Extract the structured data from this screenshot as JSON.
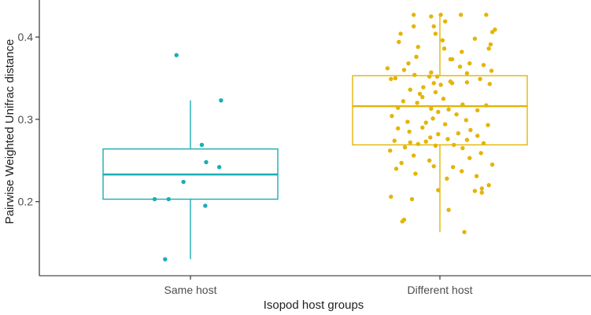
{
  "chart_data": {
    "type": "box",
    "title": "",
    "xlabel": "Isopod host groups",
    "ylabel": "Pairwise Weighted Unifrac distance",
    "ylim": [
      0.11,
      0.445
    ],
    "yticks": [
      0.2,
      0.3,
      0.4
    ],
    "ytick_labels": [
      "0.2",
      "0.3",
      "0.4"
    ],
    "grid": false,
    "legend": "none",
    "categories": [
      "Same host",
      "Different host"
    ],
    "series": [
      {
        "name": "Same host",
        "color": "#1aadb3",
        "box": {
          "whisker_low": 0.13,
          "q1": 0.203,
          "median": 0.233,
          "q3": 0.264,
          "whisker_high": 0.323
        },
        "points": [
          {
            "jitter": -0.16,
            "y": 0.378
          },
          {
            "jitter": 0.35,
            "y": 0.323
          },
          {
            "jitter": 0.13,
            "y": 0.269
          },
          {
            "jitter": 0.18,
            "y": 0.248
          },
          {
            "jitter": 0.33,
            "y": 0.242
          },
          {
            "jitter": -0.08,
            "y": 0.224
          },
          {
            "jitter": -0.41,
            "y": 0.203
          },
          {
            "jitter": -0.25,
            "y": 0.203
          },
          {
            "jitter": 0.17,
            "y": 0.195
          },
          {
            "jitter": -0.29,
            "y": 0.13
          }
        ]
      },
      {
        "name": "Different host",
        "color": "#e3b505",
        "box": {
          "whisker_low": 0.163,
          "q1": 0.269,
          "median": 0.316,
          "q3": 0.353,
          "whisker_high": 0.427
        },
        "points": [
          {
            "jitter": -0.3,
            "y": 0.427
          },
          {
            "jitter": -0.1,
            "y": 0.425
          },
          {
            "jitter": 0.01,
            "y": 0.427
          },
          {
            "jitter": 0.24,
            "y": 0.427
          },
          {
            "jitter": 0.53,
            "y": 0.427
          },
          {
            "jitter": 0.06,
            "y": 0.419
          },
          {
            "jitter": -0.3,
            "y": 0.413
          },
          {
            "jitter": -0.07,
            "y": 0.413
          },
          {
            "jitter": 0.63,
            "y": 0.409
          },
          {
            "jitter": 0.6,
            "y": 0.406
          },
          {
            "jitter": -0.45,
            "y": 0.404
          },
          {
            "jitter": -0.05,
            "y": 0.404
          },
          {
            "jitter": 0.4,
            "y": 0.398
          },
          {
            "jitter": 0.03,
            "y": 0.396
          },
          {
            "jitter": -0.47,
            "y": 0.394
          },
          {
            "jitter": 0.58,
            "y": 0.391
          },
          {
            "jitter": -0.25,
            "y": 0.388
          },
          {
            "jitter": 0.05,
            "y": 0.386
          },
          {
            "jitter": 0.56,
            "y": 0.386
          },
          {
            "jitter": 0.25,
            "y": 0.382
          },
          {
            "jitter": -0.27,
            "y": 0.376
          },
          {
            "jitter": 0.12,
            "y": 0.373
          },
          {
            "jitter": 0.14,
            "y": 0.373
          },
          {
            "jitter": -0.36,
            "y": 0.368
          },
          {
            "jitter": 0.34,
            "y": 0.368
          },
          {
            "jitter": 0.5,
            "y": 0.366
          },
          {
            "jitter": 0.23,
            "y": 0.364
          },
          {
            "jitter": -0.6,
            "y": 0.362
          },
          {
            "jitter": -0.41,
            "y": 0.36
          },
          {
            "jitter": 0.59,
            "y": 0.359
          },
          {
            "jitter": -0.1,
            "y": 0.357
          },
          {
            "jitter": 0.31,
            "y": 0.356
          },
          {
            "jitter": -0.29,
            "y": 0.354
          },
          {
            "jitter": -0.12,
            "y": 0.352
          },
          {
            "jitter": -0.03,
            "y": 0.352
          },
          {
            "jitter": -0.51,
            "y": 0.35
          },
          {
            "jitter": -0.56,
            "y": 0.349
          },
          {
            "jitter": 0.46,
            "y": 0.349
          },
          {
            "jitter": 0.12,
            "y": 0.346
          },
          {
            "jitter": 0.31,
            "y": 0.345
          },
          {
            "jitter": -0.07,
            "y": 0.344
          },
          {
            "jitter": 0.14,
            "y": 0.344
          },
          {
            "jitter": 0.57,
            "y": 0.343
          },
          {
            "jitter": 0.01,
            "y": 0.342
          },
          {
            "jitter": -0.19,
            "y": 0.339
          },
          {
            "jitter": -0.34,
            "y": 0.336
          },
          {
            "jitter": -0.05,
            "y": 0.333
          },
          {
            "jitter": -0.23,
            "y": 0.331
          },
          {
            "jitter": -0.2,
            "y": 0.327
          },
          {
            "jitter": 0.04,
            "y": 0.325
          },
          {
            "jitter": -0.42,
            "y": 0.322
          },
          {
            "jitter": -0.26,
            "y": 0.32
          },
          {
            "jitter": 0.26,
            "y": 0.318
          },
          {
            "jitter": 0.53,
            "y": 0.317
          },
          {
            "jitter": -0.48,
            "y": 0.314
          },
          {
            "jitter": -0.1,
            "y": 0.313
          },
          {
            "jitter": 0.1,
            "y": 0.312
          },
          {
            "jitter": 0.43,
            "y": 0.311
          },
          {
            "jitter": -0.02,
            "y": 0.309
          },
          {
            "jitter": 0.19,
            "y": 0.306
          },
          {
            "jitter": -0.55,
            "y": 0.304
          },
          {
            "jitter": -0.08,
            "y": 0.301
          },
          {
            "jitter": 0.3,
            "y": 0.299
          },
          {
            "jitter": -0.37,
            "y": 0.297
          },
          {
            "jitter": -0.16,
            "y": 0.296
          },
          {
            "jitter": 0.06,
            "y": 0.294
          },
          {
            "jitter": 0.55,
            "y": 0.293
          },
          {
            "jitter": -0.2,
            "y": 0.29
          },
          {
            "jitter": -0.48,
            "y": 0.289
          },
          {
            "jitter": 0.35,
            "y": 0.287
          },
          {
            "jitter": -0.35,
            "y": 0.285
          },
          {
            "jitter": 0.21,
            "y": 0.283
          },
          {
            "jitter": -0.02,
            "y": 0.282
          },
          {
            "jitter": 0.43,
            "y": 0.28
          },
          {
            "jitter": -0.11,
            "y": 0.278
          },
          {
            "jitter": 0.09,
            "y": 0.276
          },
          {
            "jitter": 0.31,
            "y": 0.275
          },
          {
            "jitter": -0.52,
            "y": 0.274
          },
          {
            "jitter": -0.16,
            "y": 0.273
          },
          {
            "jitter": -0.34,
            "y": 0.272
          },
          {
            "jitter": 0.5,
            "y": 0.271
          },
          {
            "jitter": -0.25,
            "y": 0.27
          },
          {
            "jitter": 0.16,
            "y": 0.269
          },
          {
            "jitter": -0.05,
            "y": 0.268
          },
          {
            "jitter": -0.4,
            "y": 0.266
          },
          {
            "jitter": 0.26,
            "y": 0.265
          },
          {
            "jitter": -0.57,
            "y": 0.262
          },
          {
            "jitter": 0.47,
            "y": 0.259
          },
          {
            "jitter": -0.3,
            "y": 0.256
          },
          {
            "jitter": 0.34,
            "y": 0.253
          },
          {
            "jitter": -0.12,
            "y": 0.25
          },
          {
            "jitter": -0.44,
            "y": 0.247
          },
          {
            "jitter": 0.6,
            "y": 0.245
          },
          {
            "jitter": -0.07,
            "y": 0.243
          },
          {
            "jitter": 0.15,
            "y": 0.242
          },
          {
            "jitter": -0.5,
            "y": 0.24
          },
          {
            "jitter": 0.25,
            "y": 0.237
          },
          {
            "jitter": -0.28,
            "y": 0.234
          },
          {
            "jitter": 0.42,
            "y": 0.231
          },
          {
            "jitter": 0.08,
            "y": 0.228
          },
          {
            "jitter": 0.56,
            "y": 0.22
          },
          {
            "jitter": 0.48,
            "y": 0.216
          },
          {
            "jitter": -0.02,
            "y": 0.214
          },
          {
            "jitter": 0.4,
            "y": 0.213
          },
          {
            "jitter": 0.48,
            "y": 0.211
          },
          {
            "jitter": -0.56,
            "y": 0.206
          },
          {
            "jitter": -0.32,
            "y": 0.203
          },
          {
            "jitter": 0.1,
            "y": 0.19
          },
          {
            "jitter": -0.41,
            "y": 0.178
          },
          {
            "jitter": -0.43,
            "y": 0.176
          },
          {
            "jitter": 0.28,
            "y": 0.163
          }
        ]
      }
    ]
  }
}
